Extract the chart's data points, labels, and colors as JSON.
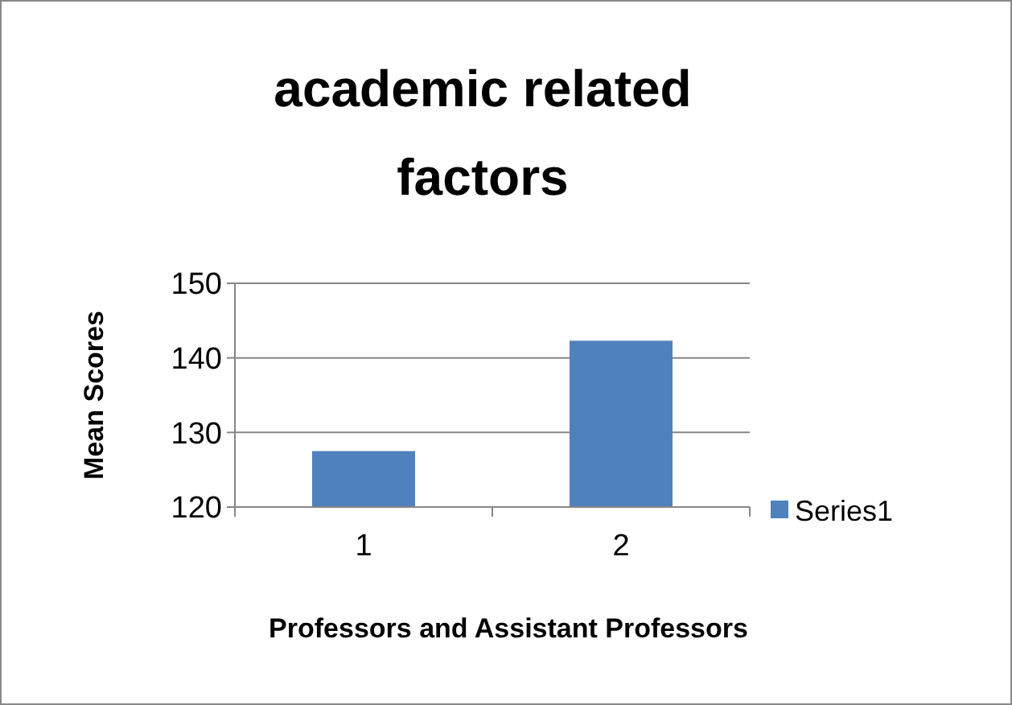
{
  "chart_data": {
    "type": "bar",
    "title": "academic  related factors",
    "xlabel": "Professors and Assistant Professors",
    "ylabel": "Mean Scores",
    "categories": [
      "1",
      "2"
    ],
    "series": [
      {
        "name": "Series1",
        "color": "#4f81bd",
        "values": [
          127.5,
          142.3
        ]
      }
    ],
    "ylim": [
      120,
      150
    ],
    "yticks": [
      120,
      130,
      140,
      150
    ],
    "grid": "y",
    "legend": "right"
  }
}
